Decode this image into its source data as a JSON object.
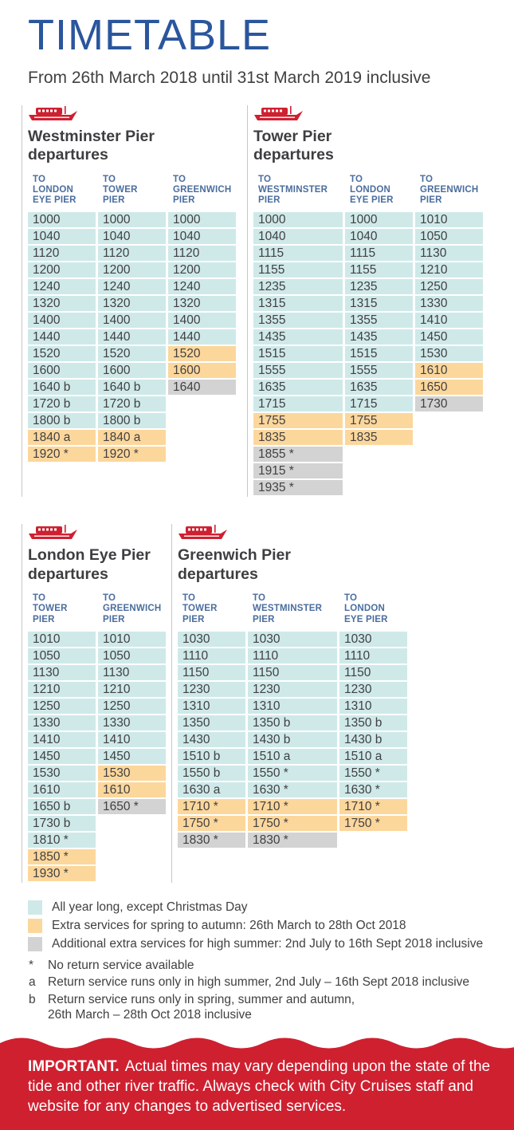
{
  "page": {
    "title": "TIMETABLE",
    "subtitle": "From 26th March 2018 until 31st March 2019 inclusive"
  },
  "colors": {
    "blue": "#2a569d",
    "header_blue": "#4a6d9e",
    "teal": "#cfe9e9",
    "orange": "#fcd79c",
    "grey": "#d3d3d3",
    "red": "#cf2030",
    "text": "#414042"
  },
  "sections": [
    {
      "id": "westminster",
      "title": "Westminster Pier departures",
      "columns": [
        [
          "TO",
          "LONDON",
          "EYE PIER"
        ],
        [
          "TO",
          "TOWER",
          "PIER"
        ],
        [
          "TO",
          "GREENWICH",
          "PIER"
        ]
      ],
      "rows": [
        [
          [
            "1000",
            "teal"
          ],
          [
            "1000",
            "teal"
          ],
          [
            "1000",
            "teal"
          ]
        ],
        [
          [
            "1040",
            "teal"
          ],
          [
            "1040",
            "teal"
          ],
          [
            "1040",
            "teal"
          ]
        ],
        [
          [
            "1120",
            "teal"
          ],
          [
            "1120",
            "teal"
          ],
          [
            "1120",
            "teal"
          ]
        ],
        [
          [
            "1200",
            "teal"
          ],
          [
            "1200",
            "teal"
          ],
          [
            "1200",
            "teal"
          ]
        ],
        [
          [
            "1240",
            "teal"
          ],
          [
            "1240",
            "teal"
          ],
          [
            "1240",
            "teal"
          ]
        ],
        [
          [
            "1320",
            "teal"
          ],
          [
            "1320",
            "teal"
          ],
          [
            "1320",
            "teal"
          ]
        ],
        [
          [
            "1400",
            "teal"
          ],
          [
            "1400",
            "teal"
          ],
          [
            "1400",
            "teal"
          ]
        ],
        [
          [
            "1440",
            "teal"
          ],
          [
            "1440",
            "teal"
          ],
          [
            "1440",
            "teal"
          ]
        ],
        [
          [
            "1520",
            "teal"
          ],
          [
            "1520",
            "teal"
          ],
          [
            "1520",
            "orange"
          ]
        ],
        [
          [
            "1600",
            "teal"
          ],
          [
            "1600",
            "teal"
          ],
          [
            "1600",
            "orange"
          ]
        ],
        [
          [
            "1640 b",
            "teal"
          ],
          [
            "1640 b",
            "teal"
          ],
          [
            "1640",
            "grey"
          ]
        ],
        [
          [
            "1720 b",
            "teal"
          ],
          [
            "1720 b",
            "teal"
          ],
          null
        ],
        [
          [
            "1800 b",
            "teal"
          ],
          [
            "1800 b",
            "teal"
          ],
          null
        ],
        [
          [
            "1840 a",
            "orange"
          ],
          [
            "1840 a",
            "orange"
          ],
          null
        ],
        [
          [
            "1920 *",
            "orange"
          ],
          [
            "1920 *",
            "orange"
          ],
          null
        ]
      ]
    },
    {
      "id": "tower",
      "title": "Tower Pier departures",
      "columns": [
        [
          "TO",
          "WESTMINSTER",
          "PIER"
        ],
        [
          "TO",
          "LONDON",
          "EYE PIER"
        ],
        [
          "TO",
          "GREENWICH",
          "PIER"
        ]
      ],
      "rows": [
        [
          [
            "1000",
            "teal"
          ],
          [
            "1000",
            "teal"
          ],
          [
            "1010",
            "teal"
          ]
        ],
        [
          [
            "1040",
            "teal"
          ],
          [
            "1040",
            "teal"
          ],
          [
            "1050",
            "teal"
          ]
        ],
        [
          [
            "1115",
            "teal"
          ],
          [
            "1115",
            "teal"
          ],
          [
            "1130",
            "teal"
          ]
        ],
        [
          [
            "1155",
            "teal"
          ],
          [
            "1155",
            "teal"
          ],
          [
            "1210",
            "teal"
          ]
        ],
        [
          [
            "1235",
            "teal"
          ],
          [
            "1235",
            "teal"
          ],
          [
            "1250",
            "teal"
          ]
        ],
        [
          [
            "1315",
            "teal"
          ],
          [
            "1315",
            "teal"
          ],
          [
            "1330",
            "teal"
          ]
        ],
        [
          [
            "1355",
            "teal"
          ],
          [
            "1355",
            "teal"
          ],
          [
            "1410",
            "teal"
          ]
        ],
        [
          [
            "1435",
            "teal"
          ],
          [
            "1435",
            "teal"
          ],
          [
            "1450",
            "teal"
          ]
        ],
        [
          [
            "1515",
            "teal"
          ],
          [
            "1515",
            "teal"
          ],
          [
            "1530",
            "teal"
          ]
        ],
        [
          [
            "1555",
            "teal"
          ],
          [
            "1555",
            "teal"
          ],
          [
            "1610",
            "orange"
          ]
        ],
        [
          [
            "1635",
            "teal"
          ],
          [
            "1635",
            "teal"
          ],
          [
            "1650",
            "orange"
          ]
        ],
        [
          [
            "1715",
            "teal"
          ],
          [
            "1715",
            "teal"
          ],
          [
            "1730",
            "grey"
          ]
        ],
        [
          [
            "1755",
            "orange"
          ],
          [
            "1755",
            "orange"
          ],
          null
        ],
        [
          [
            "1835",
            "orange"
          ],
          [
            "1835",
            "orange"
          ],
          null
        ],
        [
          [
            "1855 *",
            "grey"
          ],
          null,
          null
        ],
        [
          [
            "1915 *",
            "grey"
          ],
          null,
          null
        ],
        [
          [
            "1935 *",
            "grey"
          ],
          null,
          null
        ]
      ]
    },
    {
      "id": "londoneye",
      "title": "London Eye Pier departures",
      "columns": [
        [
          "TO",
          "TOWER",
          "PIER"
        ],
        [
          "TO",
          "GREENWICH",
          "PIER"
        ]
      ],
      "rows": [
        [
          [
            "1010",
            "teal"
          ],
          [
            "1010",
            "teal"
          ]
        ],
        [
          [
            "1050",
            "teal"
          ],
          [
            "1050",
            "teal"
          ]
        ],
        [
          [
            "1130",
            "teal"
          ],
          [
            "1130",
            "teal"
          ]
        ],
        [
          [
            "1210",
            "teal"
          ],
          [
            "1210",
            "teal"
          ]
        ],
        [
          [
            "1250",
            "teal"
          ],
          [
            "1250",
            "teal"
          ]
        ],
        [
          [
            "1330",
            "teal"
          ],
          [
            "1330",
            "teal"
          ]
        ],
        [
          [
            "1410",
            "teal"
          ],
          [
            "1410",
            "teal"
          ]
        ],
        [
          [
            "1450",
            "teal"
          ],
          [
            "1450",
            "teal"
          ]
        ],
        [
          [
            "1530",
            "teal"
          ],
          [
            "1530",
            "orange"
          ]
        ],
        [
          [
            "1610",
            "teal"
          ],
          [
            "1610",
            "orange"
          ]
        ],
        [
          [
            "1650 b",
            "teal"
          ],
          [
            "1650 *",
            "grey"
          ]
        ],
        [
          [
            "1730 b",
            "teal"
          ],
          null
        ],
        [
          [
            "1810 *",
            "teal"
          ],
          null
        ],
        [
          [
            "1850 *",
            "orange"
          ],
          null
        ],
        [
          [
            "1930 *",
            "orange"
          ],
          null
        ]
      ]
    },
    {
      "id": "greenwich",
      "title": "Greenwich Pier departures",
      "columns": [
        [
          "TO",
          "TOWER",
          "PIER"
        ],
        [
          "TO",
          "WESTMINSTER",
          "PIER"
        ],
        [
          "TO",
          "LONDON",
          "EYE PIER"
        ]
      ],
      "rows": [
        [
          [
            "1030",
            "teal"
          ],
          [
            "1030",
            "teal"
          ],
          [
            "1030",
            "teal"
          ]
        ],
        [
          [
            "1110",
            "teal"
          ],
          [
            "1110",
            "teal"
          ],
          [
            "1110",
            "teal"
          ]
        ],
        [
          [
            "1150",
            "teal"
          ],
          [
            "1150",
            "teal"
          ],
          [
            "1150",
            "teal"
          ]
        ],
        [
          [
            "1230",
            "teal"
          ],
          [
            "1230",
            "teal"
          ],
          [
            "1230",
            "teal"
          ]
        ],
        [
          [
            "1310",
            "teal"
          ],
          [
            "1310",
            "teal"
          ],
          [
            "1310",
            "teal"
          ]
        ],
        [
          [
            "1350",
            "teal"
          ],
          [
            "1350 b",
            "teal"
          ],
          [
            "1350 b",
            "teal"
          ]
        ],
        [
          [
            "1430",
            "teal"
          ],
          [
            "1430 b",
            "teal"
          ],
          [
            "1430 b",
            "teal"
          ]
        ],
        [
          [
            "1510 b",
            "teal"
          ],
          [
            "1510 a",
            "teal"
          ],
          [
            "1510 a",
            "teal"
          ]
        ],
        [
          [
            "1550 b",
            "teal"
          ],
          [
            "1550 *",
            "teal"
          ],
          [
            "1550 *",
            "teal"
          ]
        ],
        [
          [
            "1630 a",
            "teal"
          ],
          [
            "1630 *",
            "teal"
          ],
          [
            "1630 *",
            "teal"
          ]
        ],
        [
          [
            "1710 *",
            "orange"
          ],
          [
            "1710 *",
            "orange"
          ],
          [
            "1710 *",
            "orange"
          ]
        ],
        [
          [
            "1750 *",
            "orange"
          ],
          [
            "1750 *",
            "orange"
          ],
          [
            "1750 *",
            "orange"
          ]
        ],
        [
          [
            "1830 *",
            "grey"
          ],
          [
            "1830 *",
            "grey"
          ],
          null
        ]
      ]
    }
  ],
  "legend": [
    {
      "color": "teal",
      "text": "All year long, except Christmas Day"
    },
    {
      "color": "orange",
      "text": "Extra services for spring to autumn: 26th March to 28th Oct 2018"
    },
    {
      "color": "grey",
      "text": "Additional extra services for high summer: 2nd July to 16th Sept 2018 inclusive"
    }
  ],
  "footnotes": [
    {
      "mark": "*",
      "text": "No return service available"
    },
    {
      "mark": "a",
      "text": "Return service runs only in high summer, 2nd July – 16th Sept 2018 inclusive"
    },
    {
      "mark": "b",
      "text": "Return service runs only in spring, summer and autumn,\n26th March – 28th Oct 2018 inclusive"
    }
  ],
  "important": {
    "label": "IMPORTANT.",
    "text": "Actual times may vary depending upon the state of the tide and other river traffic. Always check with City Cruises staff and website for any changes to advertised services."
  }
}
